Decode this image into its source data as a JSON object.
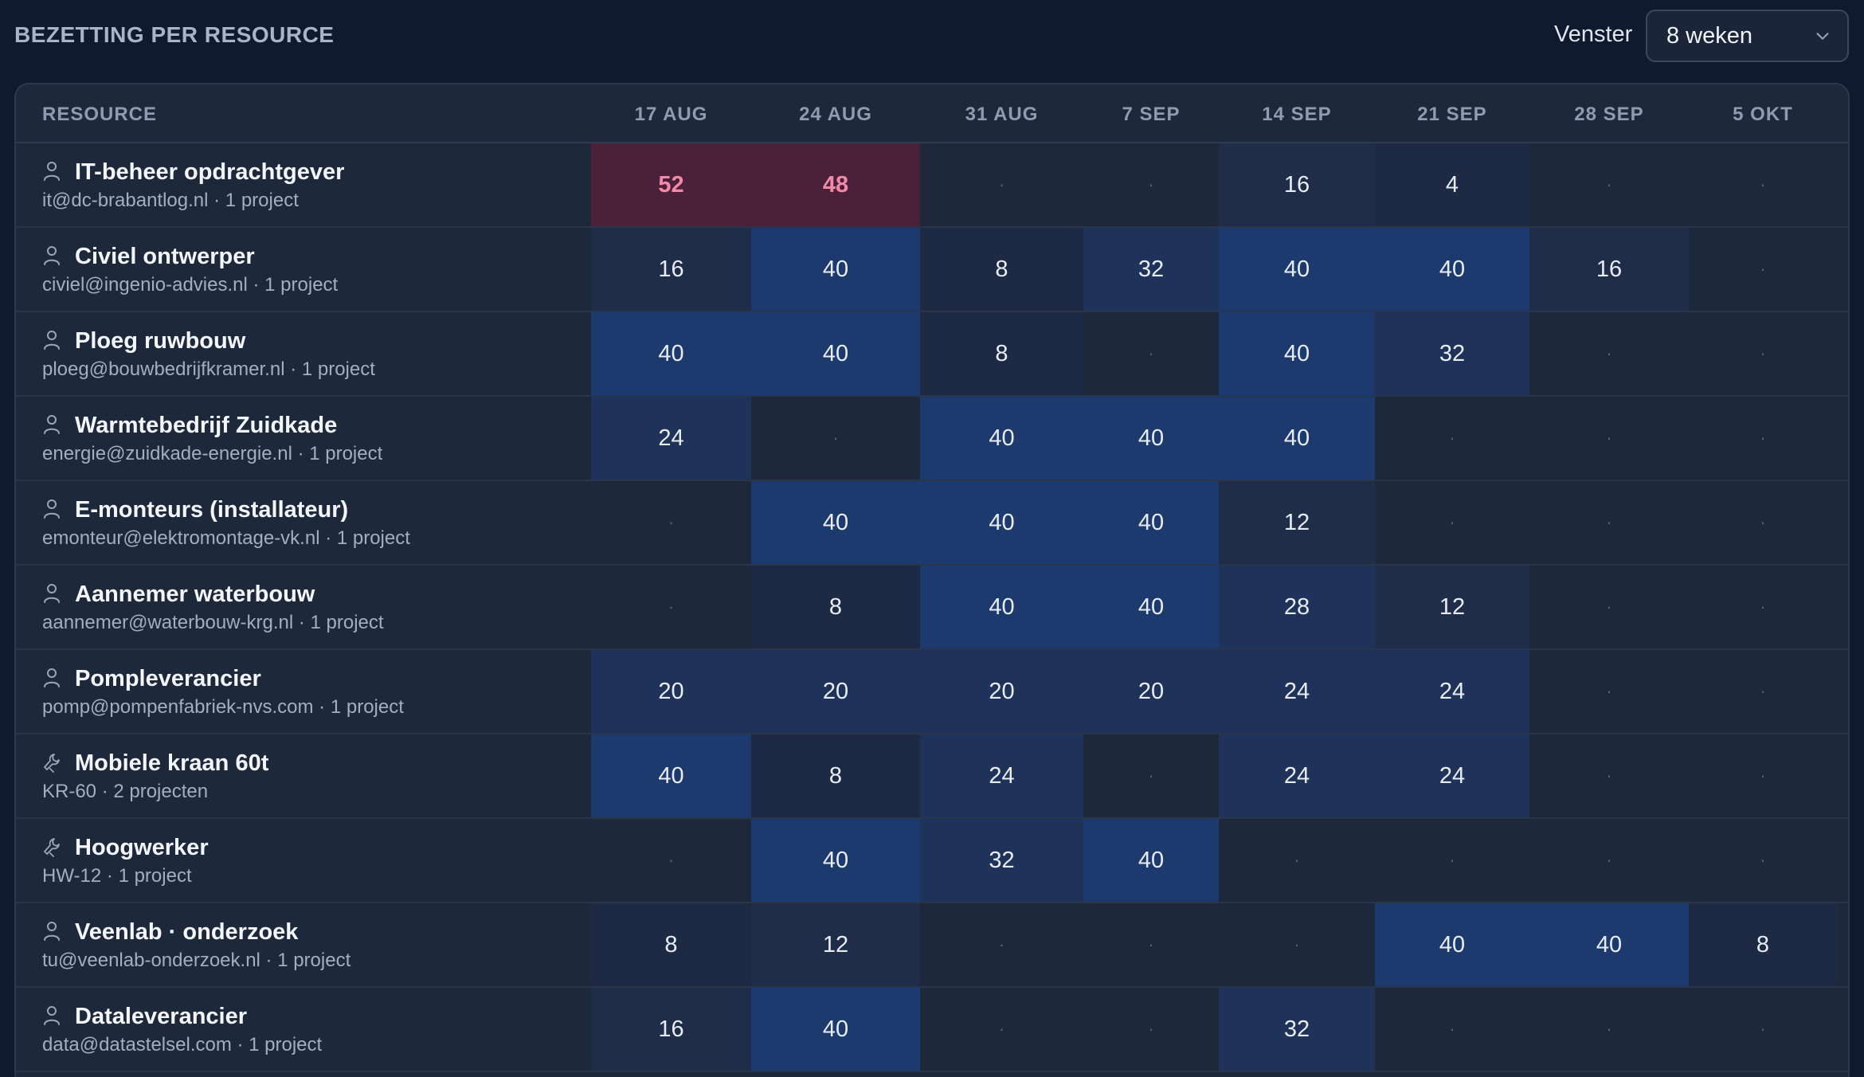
{
  "header": {
    "title": "BEZETTING PER RESOURCE",
    "window_label": "Venster",
    "window_value": "8 weken"
  },
  "table": {
    "resource_header": "RESOURCE",
    "weeks": [
      "17 AUG",
      "24 AUG",
      "31 AUG",
      "7 SEP",
      "14 SEP",
      "21 SEP",
      "28 SEP",
      "5 OKT"
    ],
    "rows": [
      {
        "name": "IT-beheer opdrachtgever",
        "sub": "it@dc-brabantlog.nl · 1 project",
        "icon": "person-icon",
        "hours": [
          "52",
          "48",
          "·",
          "·",
          "16",
          "4",
          "·",
          "·"
        ]
      },
      {
        "name": "Civiel ontwerper",
        "sub": "civiel@ingenio-advies.nl · 1 project",
        "icon": "person-icon",
        "hours": [
          "16",
          "40",
          "8",
          "32",
          "40",
          "40",
          "16",
          "·"
        ]
      },
      {
        "name": "Ploeg ruwbouw",
        "sub": "ploeg@bouwbedrijfkramer.nl · 1 project",
        "icon": "person-icon",
        "hours": [
          "40",
          "40",
          "8",
          "·",
          "40",
          "32",
          "·",
          "·"
        ]
      },
      {
        "name": "Warmtebedrijf Zuidkade",
        "sub": "energie@zuidkade-energie.nl · 1 project",
        "icon": "person-icon",
        "hours": [
          "24",
          "·",
          "40",
          "40",
          "40",
          "·",
          "·",
          "·"
        ]
      },
      {
        "name": "E-monteurs (installateur)",
        "sub": "emonteur@elektromontage-vk.nl · 1 project",
        "icon": "person-icon",
        "hours": [
          "·",
          "40",
          "40",
          "40",
          "12",
          "·",
          "·",
          "·"
        ]
      },
      {
        "name": "Aannemer waterbouw",
        "sub": "aannemer@waterbouw-krg.nl · 1 project",
        "icon": "person-icon",
        "hours": [
          "·",
          "8",
          "40",
          "40",
          "28",
          "12",
          "·",
          "·"
        ]
      },
      {
        "name": "Pompleverancier",
        "sub": "pomp@pompenfabriek-nvs.com · 1 project",
        "icon": "person-icon",
        "hours": [
          "20",
          "20",
          "20",
          "20",
          "24",
          "24",
          "·",
          "·"
        ]
      },
      {
        "name": "Mobiele kraan 60t",
        "sub": "KR-60 · 2 projecten",
        "icon": "tool-icon",
        "hours": [
          "40",
          "8",
          "24",
          "·",
          "24",
          "24",
          "·",
          "·"
        ]
      },
      {
        "name": "Hoogwerker",
        "sub": "HW-12 · 1 project",
        "icon": "tool-icon",
        "hours": [
          "·",
          "40",
          "32",
          "40",
          "·",
          "·",
          "·",
          "·"
        ]
      },
      {
        "name": "Veenlab · onderzoek",
        "sub": "tu@veenlab-onderzoek.nl · 1 project",
        "icon": "person-icon",
        "hours": [
          "8",
          "12",
          "·",
          "·",
          "·",
          "40",
          "40",
          "8"
        ]
      },
      {
        "name": "Dataleverancier",
        "sub": "data@datastelsel.com · 1 project",
        "icon": "person-icon",
        "hours": [
          "16",
          "40",
          "·",
          "·",
          "32",
          "·",
          "·",
          "·"
        ]
      }
    ]
  },
  "colors": {
    "background": "#101a2e",
    "panel": "#1d283b",
    "overbooked": "#4a2138",
    "overbooked_text": "#f08aa8"
  }
}
